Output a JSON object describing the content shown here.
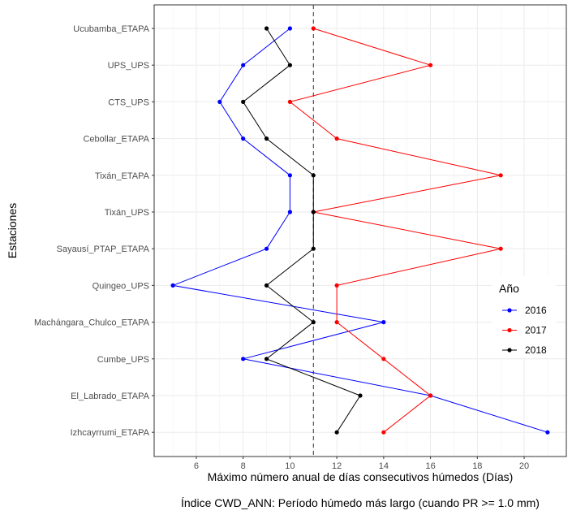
{
  "chart_data": {
    "type": "line",
    "orientation": "horizontal-categories",
    "categories": [
      "Ucubamba_ETAPA",
      "UPS_UPS",
      "CTS_UPS",
      "Cebollar_ETAPA",
      "Tixán_ETAPA",
      "Tixán_UPS",
      "Sayausí_PTAP_ETAPA",
      "Quingeo_UPS",
      "Machángara_Chulco_ETAPA",
      "Cumbe_UPS",
      "El_Labrado_ETAPA",
      "Izhcayrrumi_ETAPA"
    ],
    "series": [
      {
        "name": "2016",
        "color": "#0000ff",
        "values": [
          10,
          8,
          7,
          8,
          10,
          10,
          9,
          5,
          14,
          8,
          16,
          21
        ]
      },
      {
        "name": "2017",
        "color": "#ff0000",
        "values": [
          11,
          16,
          10,
          12,
          19,
          11,
          19,
          12,
          12,
          14,
          16,
          14
        ]
      },
      {
        "name": "2018",
        "color": "#000000",
        "values": [
          9,
          10,
          8,
          9,
          11,
          11,
          11,
          9,
          11,
          9,
          13,
          12
        ]
      }
    ],
    "xlim": [
      4.2,
      21.8
    ],
    "xticks": [
      6,
      8,
      10,
      12,
      14,
      16,
      18,
      20
    ],
    "reference_line": {
      "x": 11,
      "style": "dashed"
    },
    "xlabel": "Máximo número anual de días consecutivos húmedos (Días)",
    "ylabel": "Estaciones",
    "caption": "Índice CWD_ANN: Período húmedo más largo (cuando PR >= 1.0 mm)",
    "legend_title": "Año",
    "legend_position": "right",
    "grid": true
  }
}
